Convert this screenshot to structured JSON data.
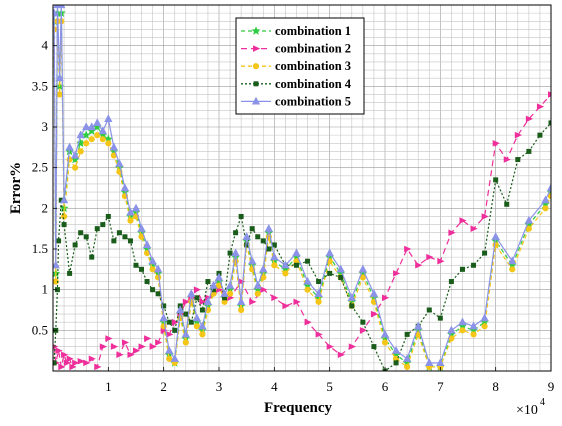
{
  "chart_data": {
    "type": "line",
    "xlabel": "Frequency",
    "ylabel": "Error%",
    "x_multiplier_label": "×10",
    "x_multiplier_exp": "4",
    "xlim": [
      0,
      9
    ],
    "ylim": [
      0,
      4.5
    ],
    "xticks": [
      "1",
      "2",
      "3",
      "4",
      "5",
      "6",
      "7",
      "8",
      "9"
    ],
    "yticks": [
      "0.5",
      "1",
      "1.5",
      "2",
      "2.5",
      "3",
      "3.5",
      "4"
    ],
    "grid": true,
    "legend_position": "top-center",
    "series": [
      {
        "name": "combination 1",
        "color": "#2ecc40",
        "dash": "4,3",
        "marker": "star",
        "x": [
          0.02,
          0.05,
          0.08,
          0.12,
          0.15,
          0.2,
          0.3,
          0.4,
          0.5,
          0.6,
          0.7,
          0.8,
          0.9,
          1.0,
          1.1,
          1.2,
          1.3,
          1.4,
          1.5,
          1.6,
          1.7,
          1.8,
          1.9,
          2.0,
          2.1,
          2.2,
          2.3,
          2.4,
          2.5,
          2.6,
          2.7,
          2.8,
          2.9,
          3.0,
          3.1,
          3.2,
          3.3,
          3.4,
          3.5,
          3.6,
          3.7,
          3.8,
          3.9,
          4.0,
          4.2,
          4.4,
          4.6,
          4.8,
          5.0,
          5.2,
          5.4,
          5.6,
          5.8,
          6.0,
          6.2,
          6.4,
          6.6,
          6.8,
          7.0,
          7.2,
          7.4,
          7.6,
          7.8,
          8.0,
          8.3,
          8.6,
          8.9,
          9.0
        ],
        "y": [
          4.3,
          1.2,
          4.4,
          3.5,
          4.4,
          2.0,
          2.7,
          2.6,
          2.8,
          2.9,
          2.95,
          3.0,
          2.9,
          2.85,
          2.7,
          2.5,
          2.2,
          1.9,
          1.95,
          1.7,
          1.5,
          1.3,
          1.2,
          0.6,
          0.2,
          0.1,
          0.7,
          0.4,
          0.9,
          0.6,
          0.5,
          0.8,
          1.0,
          1.1,
          0.9,
          1.0,
          1.4,
          0.8,
          1.6,
          1.3,
          1.0,
          1.2,
          1.7,
          1.35,
          1.25,
          1.4,
          1.05,
          0.9,
          1.4,
          1.2,
          0.85,
          1.2,
          0.9,
          0.4,
          0.2,
          0.1,
          0.5,
          0.05,
          0.05,
          0.45,
          0.55,
          0.5,
          0.6,
          1.6,
          1.3,
          1.8,
          2.05,
          2.2
        ]
      },
      {
        "name": "combination 2",
        "color": "#ee2e9a",
        "dash": "6,4",
        "marker": "arrow",
        "x": [
          0.02,
          0.05,
          0.1,
          0.15,
          0.2,
          0.25,
          0.3,
          0.35,
          0.4,
          0.5,
          0.6,
          0.7,
          0.8,
          0.9,
          1.0,
          1.1,
          1.2,
          1.3,
          1.4,
          1.5,
          1.6,
          1.7,
          1.8,
          1.9,
          2.0,
          2.1,
          2.2,
          2.3,
          2.4,
          2.5,
          2.6,
          2.7,
          2.8,
          2.9,
          3.0,
          3.2,
          3.4,
          3.6,
          3.8,
          4.0,
          4.2,
          4.4,
          4.6,
          4.8,
          5.0,
          5.2,
          5.4,
          5.6,
          5.8,
          6.0,
          6.2,
          6.4,
          6.6,
          6.8,
          7.0,
          7.2,
          7.4,
          7.6,
          7.8,
          8.0,
          8.2,
          8.4,
          8.6,
          8.8,
          9.0
        ],
        "y": [
          0.3,
          0.1,
          0.25,
          0.05,
          0.2,
          0.1,
          0.15,
          0.05,
          0.1,
          0.12,
          0.1,
          0.15,
          0.05,
          0.3,
          0.4,
          0.3,
          0.2,
          0.35,
          0.2,
          0.25,
          0.3,
          0.4,
          0.3,
          0.35,
          0.5,
          0.45,
          0.6,
          0.7,
          0.85,
          0.9,
          1.0,
          0.85,
          0.9,
          0.95,
          1.0,
          0.9,
          1.1,
          0.85,
          1.0,
          0.9,
          0.8,
          0.85,
          0.6,
          0.45,
          0.3,
          0.2,
          0.3,
          0.5,
          0.7,
          0.9,
          1.2,
          1.5,
          1.3,
          1.4,
          1.35,
          1.7,
          1.85,
          1.75,
          1.9,
          2.8,
          2.6,
          2.9,
          3.1,
          3.25,
          3.4
        ]
      },
      {
        "name": "combination 3",
        "color": "#f5c518",
        "dash": "4,3",
        "marker": "circle",
        "x": [
          0.02,
          0.05,
          0.08,
          0.12,
          0.15,
          0.2,
          0.3,
          0.4,
          0.5,
          0.6,
          0.7,
          0.8,
          0.9,
          1.0,
          1.1,
          1.2,
          1.3,
          1.4,
          1.5,
          1.6,
          1.7,
          1.8,
          1.9,
          2.0,
          2.1,
          2.2,
          2.3,
          2.4,
          2.5,
          2.6,
          2.7,
          2.8,
          2.9,
          3.0,
          3.1,
          3.2,
          3.3,
          3.4,
          3.5,
          3.6,
          3.7,
          3.8,
          3.9,
          4.0,
          4.2,
          4.4,
          4.6,
          4.8,
          5.0,
          5.2,
          5.4,
          5.6,
          5.8,
          6.0,
          6.2,
          6.4,
          6.6,
          6.8,
          7.0,
          7.2,
          7.4,
          7.6,
          7.8,
          8.0,
          8.3,
          8.6,
          8.9,
          9.0
        ],
        "y": [
          4.2,
          1.1,
          4.3,
          3.4,
          4.3,
          1.9,
          2.6,
          2.5,
          2.7,
          2.8,
          2.85,
          2.9,
          2.85,
          2.8,
          2.65,
          2.45,
          2.15,
          1.85,
          1.9,
          1.65,
          1.45,
          1.25,
          1.15,
          0.55,
          0.15,
          0.1,
          0.65,
          0.35,
          0.85,
          0.55,
          0.45,
          0.75,
          0.95,
          1.05,
          0.85,
          0.95,
          1.35,
          0.75,
          1.55,
          1.25,
          0.95,
          1.15,
          1.65,
          1.3,
          1.2,
          1.35,
          1.0,
          0.85,
          1.35,
          1.15,
          0.8,
          1.15,
          0.85,
          0.35,
          0.15,
          0.05,
          0.45,
          0.05,
          0.05,
          0.4,
          0.5,
          0.45,
          0.55,
          1.55,
          1.25,
          1.75,
          2.0,
          2.15
        ]
      },
      {
        "name": "combination 4",
        "color": "#1a5c1a",
        "dash": "2,2",
        "marker": "square",
        "x": [
          0.02,
          0.05,
          0.08,
          0.1,
          0.15,
          0.2,
          0.3,
          0.4,
          0.5,
          0.6,
          0.7,
          0.8,
          0.9,
          1.0,
          1.1,
          1.2,
          1.3,
          1.4,
          1.5,
          1.6,
          1.7,
          1.8,
          1.9,
          2.0,
          2.1,
          2.2,
          2.3,
          2.4,
          2.5,
          2.6,
          2.7,
          2.8,
          2.9,
          3.0,
          3.1,
          3.2,
          3.3,
          3.4,
          3.5,
          3.6,
          3.7,
          3.8,
          3.9,
          4.0,
          4.2,
          4.4,
          4.6,
          4.8,
          5.0,
          5.2,
          5.4,
          5.6,
          5.8,
          6.0,
          6.2,
          6.4,
          6.6,
          6.8,
          7.0,
          7.2,
          7.4,
          7.6,
          7.8,
          8.0,
          8.2,
          8.4,
          8.6,
          8.8,
          9.0
        ],
        "y": [
          0.1,
          0.5,
          1.0,
          1.6,
          2.1,
          1.8,
          1.2,
          1.55,
          1.7,
          1.65,
          1.4,
          1.75,
          1.8,
          1.9,
          1.6,
          1.7,
          1.65,
          1.6,
          1.3,
          1.25,
          1.1,
          1.0,
          0.95,
          0.8,
          0.6,
          0.5,
          0.8,
          0.7,
          0.6,
          0.9,
          0.75,
          1.1,
          1.0,
          1.2,
          0.9,
          1.45,
          1.7,
          1.9,
          1.55,
          1.75,
          1.65,
          1.6,
          1.5,
          1.55,
          1.3,
          1.3,
          1.35,
          1.1,
          1.2,
          1.15,
          0.8,
          0.6,
          0.3,
          0.0,
          0.1,
          0.45,
          0.55,
          0.75,
          0.65,
          1.1,
          1.25,
          1.3,
          1.45,
          2.35,
          2.05,
          2.6,
          2.7,
          2.9,
          3.05
        ]
      },
      {
        "name": "combination 5",
        "color": "#8b93e8",
        "dash": "none",
        "marker": "triangle",
        "x": [
          0.02,
          0.05,
          0.08,
          0.12,
          0.15,
          0.2,
          0.3,
          0.4,
          0.5,
          0.6,
          0.7,
          0.8,
          0.9,
          1.0,
          1.1,
          1.2,
          1.3,
          1.4,
          1.5,
          1.6,
          1.7,
          1.8,
          1.9,
          2.0,
          2.1,
          2.2,
          2.3,
          2.4,
          2.5,
          2.6,
          2.7,
          2.8,
          2.9,
          3.0,
          3.1,
          3.2,
          3.3,
          3.4,
          3.5,
          3.6,
          3.7,
          3.8,
          3.9,
          4.0,
          4.2,
          4.4,
          4.6,
          4.8,
          5.0,
          5.2,
          5.4,
          5.6,
          5.8,
          6.0,
          6.2,
          6.4,
          6.6,
          6.8,
          7.0,
          7.2,
          7.4,
          7.6,
          7.8,
          8.0,
          8.3,
          8.6,
          8.9,
          9.0
        ],
        "y": [
          4.4,
          1.3,
          4.5,
          3.6,
          4.5,
          2.1,
          2.75,
          2.65,
          2.9,
          3.0,
          3.0,
          3.05,
          2.95,
          3.1,
          2.75,
          2.55,
          2.25,
          1.95,
          2.0,
          1.75,
          1.55,
          1.35,
          1.25,
          0.65,
          0.25,
          0.15,
          0.75,
          0.45,
          0.95,
          0.65,
          0.55,
          0.85,
          1.05,
          1.15,
          0.95,
          1.05,
          1.45,
          0.85,
          1.65,
          1.35,
          1.05,
          1.25,
          1.75,
          1.4,
          1.3,
          1.45,
          1.1,
          0.95,
          1.45,
          1.25,
          0.9,
          1.25,
          0.95,
          0.45,
          0.25,
          0.15,
          0.55,
          0.1,
          0.1,
          0.5,
          0.6,
          0.55,
          0.65,
          1.65,
          1.35,
          1.85,
          2.1,
          2.25
        ]
      }
    ]
  }
}
